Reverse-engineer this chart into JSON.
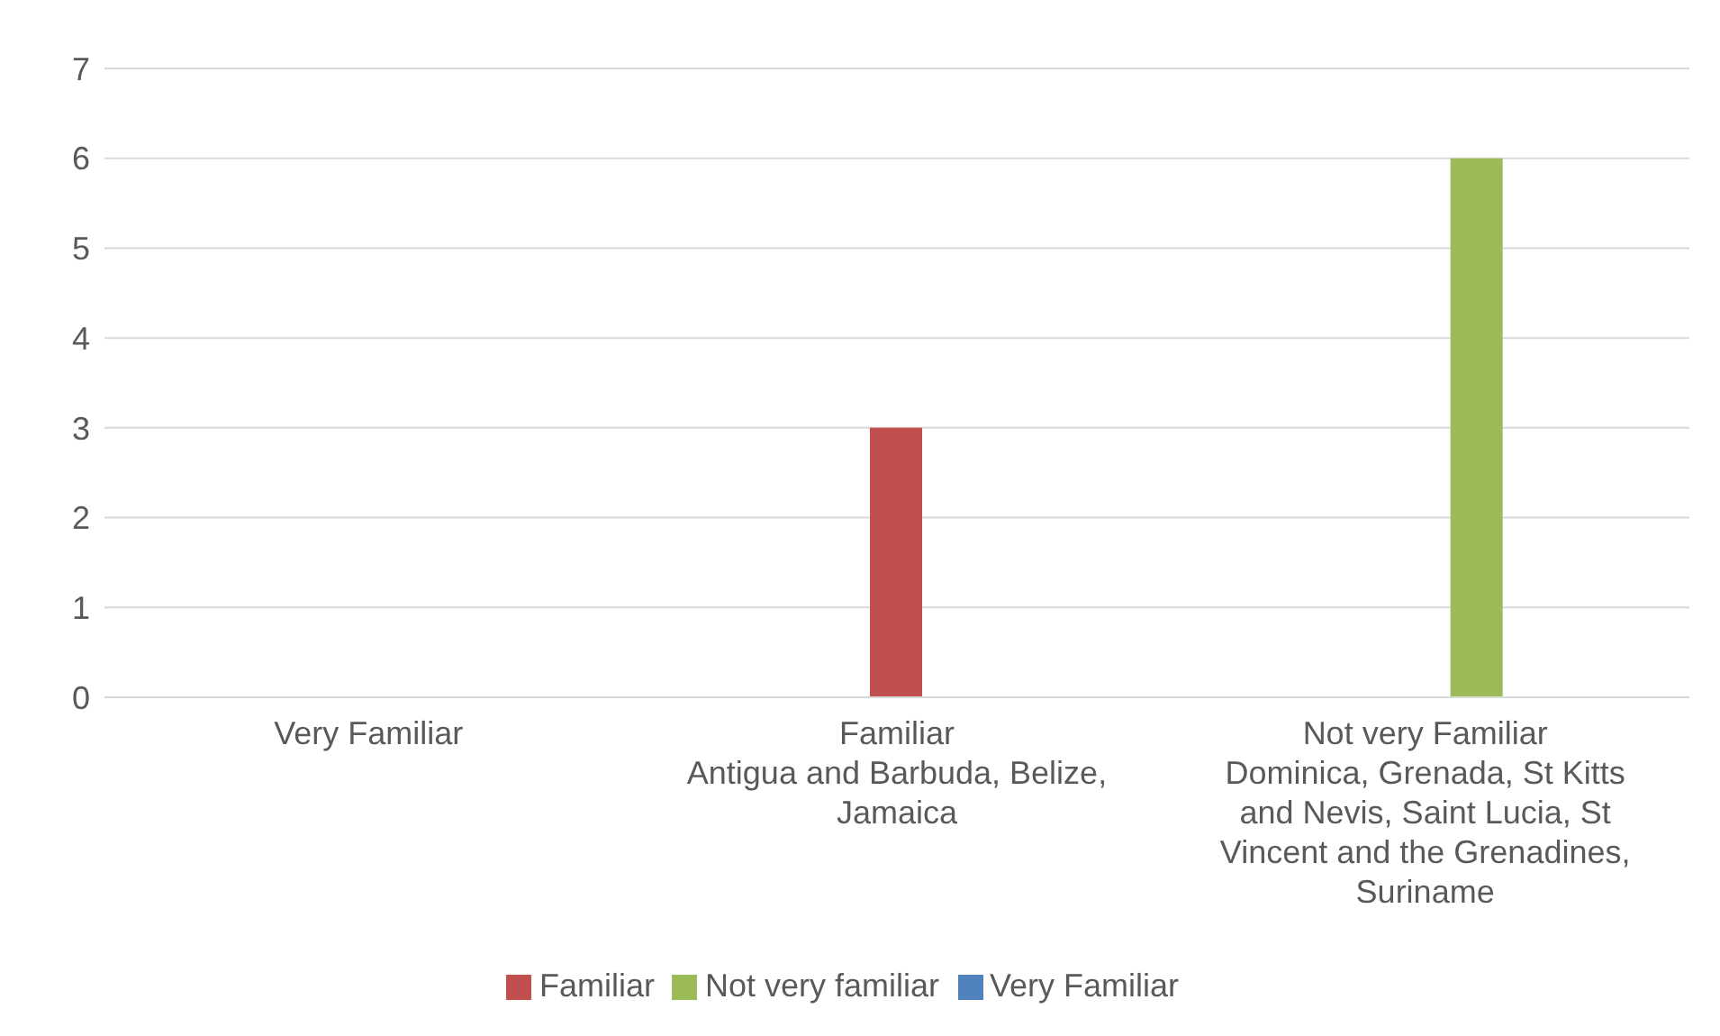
{
  "chart_data": {
    "type": "bar",
    "categories": [
      "Very Familiar",
      "Familiar\nAntigua and Barbuda, Belize, Jamaica",
      "Not very Familiar\nDominica, Grenada, St Kitts and Nevis, Saint Lucia, St Vincent and the Grenadines, Suriname"
    ],
    "series": [
      {
        "name": "Very Familiar",
        "color": "#4f81bd",
        "values": [
          0,
          null,
          null
        ]
      },
      {
        "name": "Familiar",
        "color": "#c0504d",
        "values": [
          null,
          3,
          null
        ]
      },
      {
        "name": "Not very familiar",
        "color": "#9bbb59",
        "values": [
          null,
          null,
          6
        ]
      }
    ],
    "ylim": [
      0,
      7
    ],
    "yticks": [
      0,
      1,
      2,
      3,
      4,
      5,
      6,
      7
    ],
    "grid": "y",
    "legend": "bottom"
  }
}
